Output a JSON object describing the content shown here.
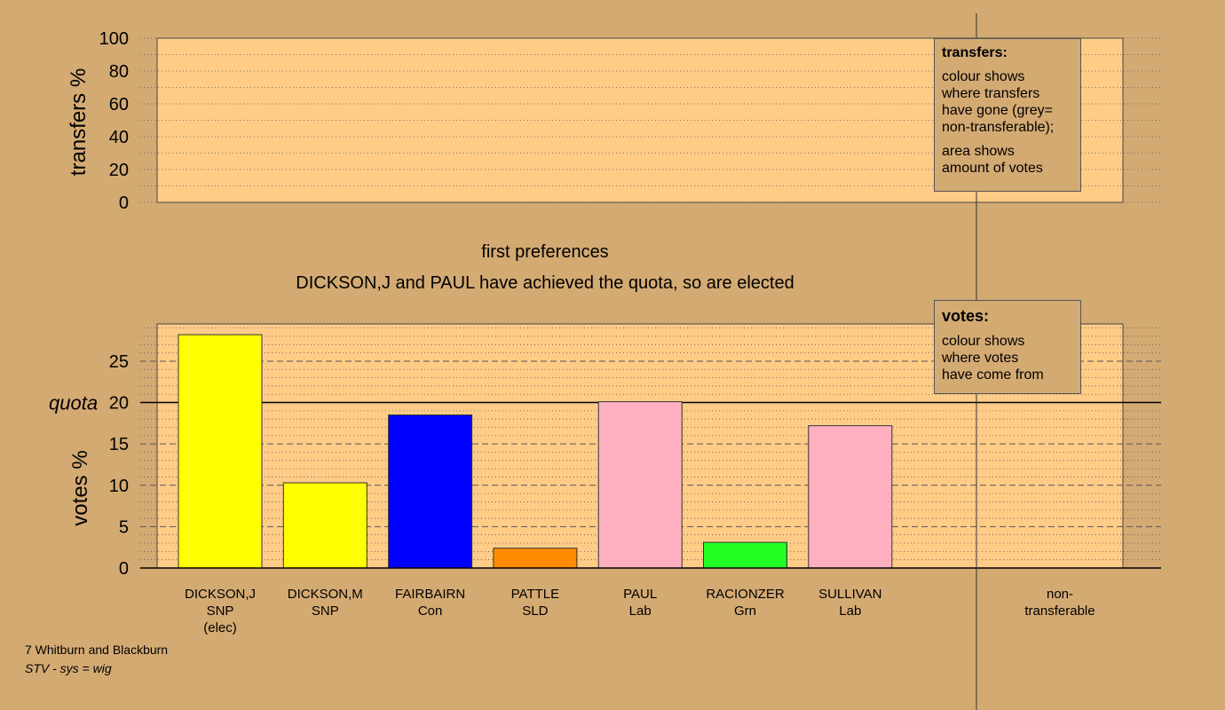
{
  "chart_data": [
    {
      "type": "bar",
      "ylabel": "transfers %",
      "ylim": [
        0,
        100
      ],
      "yticks": [
        "0",
        "20",
        "40",
        "60",
        "80",
        "100"
      ],
      "grid": true,
      "categories": [],
      "values": []
    },
    {
      "type": "bar",
      "title": "first preferences",
      "subtitle": "DICKSON,J and PAUL have achieved the quota, so are elected",
      "ylabel": "votes %",
      "ylim": [
        0,
        29.5
      ],
      "yticks": [
        "0",
        "5",
        "10",
        "15",
        "20",
        "25"
      ],
      "quota_label": "quota",
      "quota_value": 20,
      "grid": true,
      "categories": [
        {
          "name": "DICKSON,J",
          "party": "SNP",
          "note": "(elec)",
          "value": 28.2,
          "color": "#ffff00"
        },
        {
          "name": "DICKSON,M",
          "party": "SNP",
          "note": "",
          "value": 10.3,
          "color": "#ffff00"
        },
        {
          "name": "FAIRBAIRN",
          "party": "Con",
          "note": "",
          "value": 18.5,
          "color": "#0000ff"
        },
        {
          "name": "PATTLE",
          "party": "SLD",
          "note": "",
          "value": 2.4,
          "color": "#ff8c00"
        },
        {
          "name": "PAUL",
          "party": "Lab",
          "note": "",
          "value": 20.1,
          "color": "#ffb0c0"
        },
        {
          "name": "RACIONZER",
          "party": "Grn",
          "note": "",
          "value": 3.1,
          "color": "#22ff22"
        },
        {
          "name": "SULLIVAN",
          "party": "Lab",
          "note": "",
          "value": 17.2,
          "color": "#ffb0c0"
        }
      ],
      "nontransferable_label_1": "non-",
      "nontransferable_label_2": "transferable"
    }
  ],
  "legends": {
    "transfers": {
      "title": "transfers:",
      "lines1": [
        "colour shows",
        "where transfers",
        "have gone (grey=",
        "non-transferable);"
      ],
      "lines2": [
        "area shows",
        "amount of votes"
      ]
    },
    "votes": {
      "title": "votes:",
      "lines1": [
        "colour shows",
        "where votes",
        "have come from"
      ]
    }
  },
  "footer": {
    "ward": "7 Whitburn and Blackburn",
    "system": "STV - sys = wig"
  },
  "colors": {
    "background": "#d4aa73",
    "plot_bg": "#ffcc88"
  }
}
